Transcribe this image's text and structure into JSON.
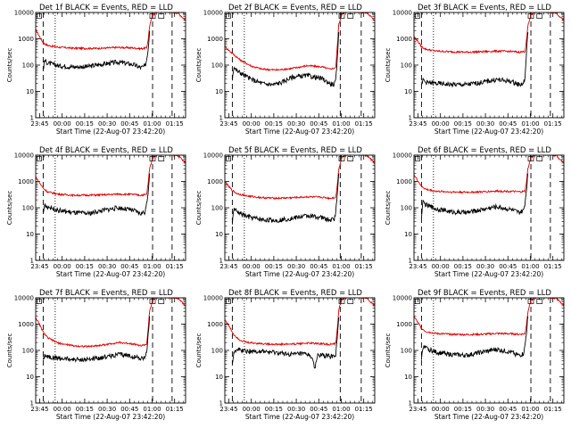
{
  "colors": {
    "events": "#000000",
    "lld": "#e00000",
    "axis": "#000000"
  },
  "panel_icon": "ls-square-icon",
  "chart_data": [
    {
      "type": "line",
      "title": "Det 1f BLACK = Events, RED = LLD",
      "ylabel": "Counts/sec",
      "xlabel": "Start Time (22-Aug-07 23:42:20)",
      "x_tick_labels": [
        "23:45",
        "00:00",
        "00:15",
        "00:30",
        "00:45",
        "01:00",
        "01:15"
      ],
      "y_tick_labels": [
        "1",
        "10",
        "100",
        "1000",
        "10000"
      ],
      "x_unit": "minutes after start",
      "xlim": [
        0,
        100
      ],
      "ylim": [
        1,
        10000
      ],
      "y_scale": "log",
      "dashed_lines_x": [
        5,
        78,
        91
      ],
      "dotted_lines_x": [
        13
      ],
      "series": [
        {
          "color": "red",
          "x": [
            0,
            2,
            5,
            8,
            15,
            25,
            35,
            45,
            55,
            65,
            70,
            74,
            75,
            76,
            78,
            81,
            85,
            88,
            92,
            95,
            100
          ],
          "y": [
            2200,
            1400,
            700,
            560,
            480,
            440,
            430,
            440,
            470,
            450,
            420,
            450,
            900,
            3000,
            8000,
            10500,
            11000,
            10500,
            10000,
            9500,
            5000
          ]
        },
        {
          "color": "black",
          "x": [
            5,
            6,
            8,
            15,
            25,
            35,
            45,
            55,
            65,
            70,
            73,
            74,
            75,
            76
          ],
          "y": [
            70,
            150,
            120,
            95,
            85,
            88,
            110,
            130,
            105,
            80,
            90,
            160,
            400,
            2000
          ]
        }
      ]
    },
    {
      "type": "line",
      "title": "Det 2f BLACK = Events, RED = LLD",
      "ylabel": "Counts/sec",
      "xlabel": "Start Time (22-Aug-07 23:42:20)",
      "x_tick_labels": [
        "23:45",
        "00:00",
        "00:15",
        "00:30",
        "00:45",
        "01:00",
        "01:15"
      ],
      "y_tick_labels": [
        "1",
        "10",
        "100",
        "1000",
        "10000"
      ],
      "x_unit": "minutes after start",
      "xlim": [
        0,
        100
      ],
      "ylim": [
        1,
        10000
      ],
      "y_scale": "log",
      "dashed_lines_x": [
        5,
        77,
        91
      ],
      "dotted_lines_x": [
        13
      ],
      "series": [
        {
          "color": "red",
          "x": [
            0,
            3,
            6,
            10,
            18,
            25,
            35,
            45,
            55,
            65,
            70,
            74,
            75,
            76,
            78,
            81,
            85,
            88,
            92,
            95,
            100
          ],
          "y": [
            500,
            350,
            250,
            160,
            90,
            70,
            65,
            75,
            95,
            85,
            70,
            80,
            500,
            3500,
            8500,
            10500,
            11000,
            10500,
            10000,
            9500,
            5000
          ]
        },
        {
          "color": "black",
          "x": [
            5,
            6,
            8,
            12,
            18,
            25,
            32,
            38,
            45,
            55,
            65,
            70,
            73,
            74,
            75,
            76
          ],
          "y": [
            30,
            85,
            60,
            45,
            28,
            20,
            18,
            22,
            35,
            40,
            30,
            20,
            18,
            25,
            150,
            1800
          ]
        }
      ]
    },
    {
      "type": "line",
      "title": "Det 3f BLACK = Events, RED = LLD",
      "ylabel": "Counts/sec",
      "xlabel": "Start Time (22-Aug-07 23:42:20)",
      "x_tick_labels": [
        "23:45",
        "00:00",
        "00:15",
        "00:30",
        "00:45",
        "01:00",
        "01:15"
      ],
      "y_tick_labels": [
        "1",
        "10",
        "100",
        "1000",
        "10000"
      ],
      "x_unit": "minutes after start",
      "xlim": [
        0,
        100
      ],
      "ylim": [
        1,
        10000
      ],
      "y_scale": "log",
      "dashed_lines_x": [
        5,
        78,
        91
      ],
      "dotted_lines_x": [
        13
      ],
      "series": [
        {
          "color": "red",
          "x": [
            0,
            2,
            5,
            8,
            15,
            25,
            35,
            45,
            55,
            65,
            70,
            74,
            75,
            76,
            78,
            81,
            85,
            88,
            92,
            95,
            100
          ],
          "y": [
            1200,
            900,
            500,
            400,
            340,
            320,
            310,
            320,
            340,
            330,
            310,
            330,
            800,
            3000,
            8000,
            10500,
            11000,
            10500,
            10000,
            9500,
            5000
          ]
        },
        {
          "color": "black",
          "x": [
            5,
            6,
            8,
            15,
            25,
            35,
            45,
            55,
            65,
            70,
            73,
            74,
            75,
            76
          ],
          "y": [
            15,
            28,
            22,
            20,
            18,
            18,
            22,
            28,
            24,
            18,
            20,
            30,
            250,
            1800
          ]
        }
      ]
    },
    {
      "type": "line",
      "title": "Det 4f BLACK = Events, RED = LLD",
      "ylabel": "Counts/sec",
      "xlabel": "Start Time (22-Aug-07 23:42:20)",
      "x_tick_labels": [
        "23:45",
        "00:00",
        "00:15",
        "00:30",
        "00:45",
        "01:00",
        "01:15"
      ],
      "y_tick_labels": [
        "1",
        "10",
        "100",
        "1000",
        "10000"
      ],
      "x_unit": "minutes after start",
      "xlim": [
        0,
        100
      ],
      "ylim": [
        1,
        10000
      ],
      "y_scale": "log",
      "dashed_lines_x": [
        5,
        78,
        91
      ],
      "dotted_lines_x": [
        13
      ],
      "series": [
        {
          "color": "red",
          "x": [
            0,
            2,
            5,
            8,
            15,
            25,
            35,
            45,
            55,
            65,
            70,
            74,
            75,
            76,
            78,
            81,
            85,
            88,
            92,
            95,
            100
          ],
          "y": [
            1500,
            1000,
            550,
            400,
            330,
            300,
            300,
            310,
            330,
            320,
            300,
            320,
            800,
            3000,
            8000,
            10500,
            11000,
            10500,
            10000,
            9500,
            5000
          ]
        },
        {
          "color": "black",
          "x": [
            5,
            6,
            8,
            15,
            25,
            35,
            45,
            55,
            65,
            70,
            73,
            74,
            75,
            76
          ],
          "y": [
            60,
            130,
            110,
            80,
            65,
            60,
            80,
            100,
            80,
            60,
            70,
            130,
            400,
            2000
          ]
        }
      ]
    },
    {
      "type": "line",
      "title": "Det 5f BLACK = Events, RED = LLD",
      "ylabel": "Counts/sec",
      "xlabel": "Start Time (22-Aug-07 23:42:20)",
      "x_tick_labels": [
        "23:45",
        "00:00",
        "00:15",
        "00:30",
        "00:45",
        "01:00",
        "01:15"
      ],
      "y_tick_labels": [
        "1",
        "10",
        "100",
        "1000",
        "10000"
      ],
      "x_unit": "minutes after start",
      "xlim": [
        0,
        100
      ],
      "ylim": [
        1,
        10000
      ],
      "y_scale": "log",
      "dashed_lines_x": [
        5,
        77,
        91
      ],
      "dotted_lines_x": [
        13
      ],
      "series": [
        {
          "color": "red",
          "x": [
            0,
            2,
            5,
            8,
            15,
            25,
            35,
            45,
            55,
            65,
            70,
            74,
            75,
            76,
            78,
            81,
            85,
            88,
            92,
            95,
            100
          ],
          "y": [
            1000,
            700,
            450,
            350,
            280,
            240,
            230,
            240,
            260,
            250,
            230,
            250,
            700,
            3000,
            8000,
            10500,
            11000,
            10500,
            10000,
            9500,
            5000
          ]
        },
        {
          "color": "black",
          "x": [
            5,
            6,
            8,
            15,
            25,
            35,
            45,
            55,
            65,
            70,
            73,
            74,
            75,
            76
          ],
          "y": [
            25,
            90,
            70,
            45,
            35,
            33,
            40,
            50,
            42,
            33,
            38,
            70,
            300,
            2000
          ]
        }
      ]
    },
    {
      "type": "line",
      "title": "Det 6f BLACK = Events, RED = LLD",
      "ylabel": "Counts/sec",
      "xlabel": "Start Time (22-Aug-07 23:42:20)",
      "x_tick_labels": [
        "23:45",
        "00:00",
        "00:15",
        "00:30",
        "00:45",
        "01:00",
        "01:15"
      ],
      "y_tick_labels": [
        "1",
        "10",
        "100",
        "1000",
        "10000"
      ],
      "x_unit": "minutes after start",
      "xlim": [
        0,
        100
      ],
      "ylim": [
        1,
        10000
      ],
      "y_scale": "log",
      "dashed_lines_x": [
        5,
        78,
        91
      ],
      "dotted_lines_x": [
        13
      ],
      "series": [
        {
          "color": "red",
          "x": [
            0,
            2,
            5,
            8,
            15,
            25,
            35,
            45,
            55,
            65,
            70,
            74,
            75,
            76,
            78,
            81,
            85,
            88,
            92,
            95,
            100
          ],
          "y": [
            1800,
            1200,
            650,
            500,
            420,
            400,
            390,
            400,
            430,
            420,
            400,
            420,
            900,
            3000,
            8000,
            10500,
            11000,
            10500,
            10000,
            9500,
            5000
          ]
        },
        {
          "color": "black",
          "x": [
            5,
            6,
            8,
            15,
            25,
            35,
            45,
            55,
            65,
            70,
            73,
            74,
            75,
            76
          ],
          "y": [
            50,
            160,
            130,
            90,
            70,
            65,
            85,
            110,
            85,
            65,
            75,
            140,
            450,
            2000
          ]
        }
      ]
    },
    {
      "type": "line",
      "title": "Det 7f BLACK = Events, RED = LLD",
      "ylabel": "Counts/sec",
      "xlabel": "Start Time (22-Aug-07 23:42:20)",
      "x_tick_labels": [
        "23:45",
        "00:00",
        "00:15",
        "00:30",
        "00:45",
        "01:00",
        "01:15"
      ],
      "y_tick_labels": [
        "1",
        "10",
        "100",
        "1000",
        "10000"
      ],
      "x_unit": "minutes after start",
      "xlim": [
        0,
        100
      ],
      "ylim": [
        1,
        10000
      ],
      "y_scale": "log",
      "dashed_lines_x": [
        5,
        78,
        91
      ],
      "dotted_lines_x": [
        13
      ],
      "series": [
        {
          "color": "red",
          "x": [
            0,
            2,
            5,
            8,
            15,
            25,
            35,
            45,
            55,
            65,
            70,
            74,
            75,
            76,
            78,
            81,
            85,
            88,
            92,
            95,
            100
          ],
          "y": [
            1800,
            1100,
            500,
            300,
            190,
            150,
            140,
            160,
            200,
            180,
            150,
            170,
            600,
            3000,
            8000,
            10500,
            11000,
            10500,
            10000,
            9500,
            5000
          ]
        },
        {
          "color": "black",
          "x": [
            5,
            6,
            8,
            15,
            25,
            35,
            45,
            55,
            65,
            70,
            73,
            74,
            75,
            76
          ],
          "y": [
            40,
            70,
            60,
            50,
            45,
            45,
            55,
            70,
            60,
            50,
            55,
            80,
            350,
            2000
          ]
        }
      ]
    },
    {
      "type": "line",
      "title": "Det 8f BLACK = Events, RED = LLD",
      "ylabel": "Counts/sec",
      "xlabel": "Start Time (22-Aug-07 23:42:20)",
      "x_tick_labels": [
        "23:45",
        "00:00",
        "00:15",
        "00:30",
        "00:45",
        "01:00",
        "01:15"
      ],
      "y_tick_labels": [
        "1",
        "10",
        "100",
        "1000",
        "10000"
      ],
      "x_unit": "minutes after start",
      "xlim": [
        0,
        100
      ],
      "ylim": [
        1,
        10000
      ],
      "y_scale": "log",
      "dashed_lines_x": [
        5,
        77,
        91
      ],
      "dotted_lines_x": [
        13
      ],
      "series": [
        {
          "color": "red",
          "x": [
            0,
            3,
            6,
            10,
            15,
            25,
            35,
            45,
            55,
            65,
            70,
            74,
            75,
            76,
            78,
            81,
            85,
            88,
            92,
            95,
            100
          ],
          "y": [
            1500,
            800,
            400,
            250,
            200,
            180,
            170,
            175,
            190,
            180,
            170,
            180,
            600,
            3500,
            8500,
            10500,
            11000,
            10500,
            10000,
            9500,
            5000
          ]
        },
        {
          "color": "black",
          "x": [
            5,
            6,
            8,
            15,
            25,
            35,
            45,
            50,
            55,
            58,
            60,
            62,
            65,
            70,
            73,
            74,
            75,
            76
          ],
          "y": [
            30,
            90,
            110,
            95,
            90,
            80,
            70,
            75,
            70,
            60,
            18,
            70,
            65,
            60,
            60,
            70,
            300,
            1800
          ]
        }
      ]
    },
    {
      "type": "line",
      "title": "Det 9f BLACK = Events, RED = LLD",
      "ylabel": "Counts/sec",
      "xlabel": "Start Time (22-Aug-07 23:42:20)",
      "x_tick_labels": [
        "23:45",
        "00:00",
        "00:15",
        "00:30",
        "00:45",
        "01:00",
        "01:15"
      ],
      "y_tick_labels": [
        "1",
        "10",
        "100",
        "1000",
        "10000"
      ],
      "x_unit": "minutes after start",
      "xlim": [
        0,
        100
      ],
      "ylim": [
        1,
        10000
      ],
      "y_scale": "log",
      "dashed_lines_x": [
        5,
        78,
        91
      ],
      "dotted_lines_x": [
        13
      ],
      "series": [
        {
          "color": "red",
          "x": [
            0,
            2,
            5,
            8,
            15,
            25,
            35,
            45,
            55,
            65,
            70,
            74,
            75,
            76,
            78,
            81,
            85,
            88,
            92,
            95,
            100
          ],
          "y": [
            2000,
            1300,
            700,
            520,
            440,
            410,
            400,
            410,
            440,
            430,
            410,
            430,
            900,
            3000,
            8000,
            10500,
            11000,
            10500,
            10000,
            9500,
            5000
          ]
        },
        {
          "color": "black",
          "x": [
            5,
            6,
            8,
            15,
            25,
            35,
            45,
            55,
            65,
            70,
            73,
            74,
            75,
            76
          ],
          "y": [
            50,
            140,
            120,
            85,
            70,
            65,
            85,
            110,
            85,
            65,
            75,
            140,
            450,
            2000
          ]
        }
      ]
    }
  ]
}
